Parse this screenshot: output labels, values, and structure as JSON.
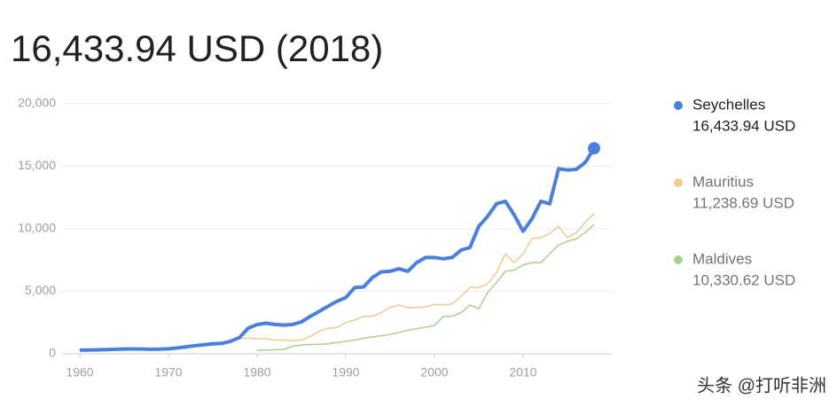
{
  "chart_data": {
    "type": "line",
    "title": "16,433.94 USD (2018)",
    "watermark": "头条 @打听非洲",
    "x": [
      1960,
      1961,
      1962,
      1963,
      1964,
      1965,
      1966,
      1967,
      1968,
      1969,
      1970,
      1971,
      1972,
      1973,
      1974,
      1975,
      1976,
      1977,
      1978,
      1979,
      1980,
      1981,
      1982,
      1983,
      1984,
      1985,
      1986,
      1987,
      1988,
      1989,
      1990,
      1991,
      1992,
      1993,
      1994,
      1995,
      1996,
      1997,
      1998,
      1999,
      2000,
      2001,
      2002,
      2003,
      2004,
      2005,
      2006,
      2007,
      2008,
      2009,
      2010,
      2011,
      2012,
      2013,
      2014,
      2015,
      2016,
      2017,
      2018
    ],
    "xlim": [
      1958,
      2020
    ],
    "xticks": [
      1960,
      1970,
      1980,
      1990,
      2000,
      2010
    ],
    "ylim": [
      0,
      20000
    ],
    "yticks": [
      0,
      {
        "value": 5000,
        "label": "5,000"
      },
      {
        "value": 10000,
        "label": "10,000"
      },
      {
        "value": 15000,
        "label": "15,000"
      },
      {
        "value": 20000,
        "label": "20,000"
      }
    ],
    "grid": true,
    "series": [
      {
        "name": "Seychelles",
        "color": "#4a7fdc",
        "latest_label": "16,433.94 USD",
        "values": [
          300,
          300,
          320,
          340,
          360,
          380,
          390,
          380,
          360,
          370,
          400,
          470,
          560,
          650,
          730,
          800,
          830,
          1000,
          1300,
          2060,
          2340,
          2450,
          2350,
          2300,
          2350,
          2550,
          3000,
          3400,
          3800,
          4200,
          4500,
          5300,
          5350,
          6100,
          6550,
          6600,
          6800,
          6600,
          7300,
          7700,
          7700,
          7600,
          7700,
          8300,
          8500,
          10200,
          11000,
          12000,
          12200,
          11100,
          9800,
          10800,
          12200,
          12000,
          14800,
          14700,
          14750,
          15300,
          16433.94
        ]
      },
      {
        "name": "Mauritius",
        "color": "#f2c98e",
        "latest_label": "11,238.69 USD",
        "values": [
          null,
          null,
          null,
          null,
          null,
          null,
          null,
          null,
          null,
          null,
          null,
          null,
          null,
          null,
          null,
          null,
          900,
          1050,
          1250,
          1250,
          1200,
          1200,
          1100,
          1100,
          1050,
          1100,
          1400,
          1800,
          2050,
          2100,
          2500,
          2700,
          3000,
          3000,
          3300,
          3700,
          3900,
          3700,
          3700,
          3750,
          3950,
          3900,
          4000,
          4600,
          5300,
          5300,
          5600,
          6500,
          8000,
          7300,
          8000,
          9200,
          9300,
          9600,
          10200,
          9300,
          9700,
          10500,
          11238.69
        ]
      },
      {
        "name": "Maldives",
        "color": "#a9d18e",
        "latest_label": "10,330.62 USD",
        "values": [
          null,
          null,
          null,
          null,
          null,
          null,
          null,
          null,
          null,
          null,
          null,
          null,
          null,
          null,
          null,
          null,
          null,
          null,
          null,
          null,
          300,
          300,
          320,
          350,
          600,
          700,
          750,
          750,
          800,
          900,
          1000,
          1100,
          1250,
          1350,
          1450,
          1550,
          1700,
          1900,
          2000,
          2150,
          2250,
          3000,
          3000,
          3300,
          3900,
          3600,
          4900,
          5700,
          6600,
          6700,
          7100,
          7300,
          7300,
          8000,
          8700,
          9000,
          9200,
          9700,
          10330.62
        ]
      }
    ]
  }
}
